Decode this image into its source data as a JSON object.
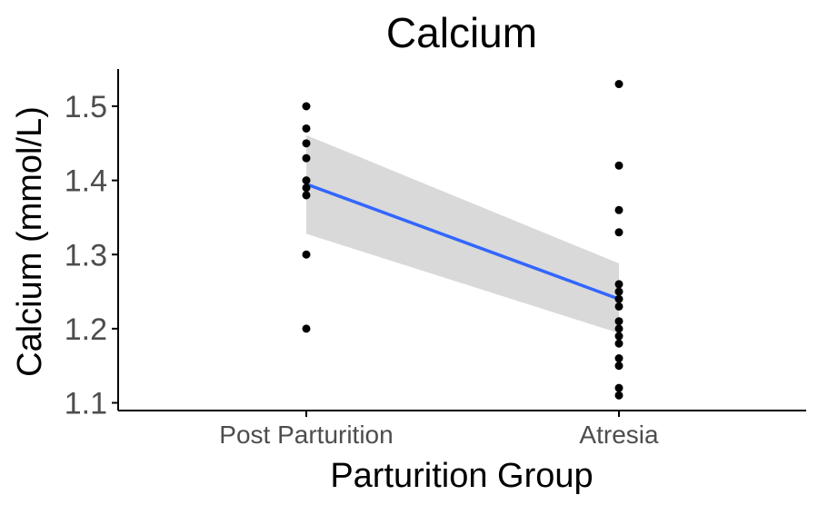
{
  "chart_data": {
    "type": "scatter",
    "title": "Calcium",
    "xlabel": "Parturition Group",
    "ylabel": "Calcium (mmol/L)",
    "categories": [
      "Post Parturition",
      "Atresia"
    ],
    "ylim": [
      1.09,
      1.55
    ],
    "yticks": [
      1.1,
      1.2,
      1.3,
      1.4,
      1.5
    ],
    "ytick_labels": [
      "1.1",
      "1.2",
      "1.3",
      "1.4",
      "1.5"
    ],
    "grid": false,
    "legend": "none",
    "points": [
      {
        "category": "Post Parturition",
        "y": 1.5
      },
      {
        "category": "Post Parturition",
        "y": 1.47
      },
      {
        "category": "Post Parturition",
        "y": 1.45
      },
      {
        "category": "Post Parturition",
        "y": 1.43
      },
      {
        "category": "Post Parturition",
        "y": 1.4
      },
      {
        "category": "Post Parturition",
        "y": 1.39
      },
      {
        "category": "Post Parturition",
        "y": 1.38
      },
      {
        "category": "Post Parturition",
        "y": 1.3
      },
      {
        "category": "Post Parturition",
        "y": 1.2
      },
      {
        "category": "Atresia",
        "y": 1.53
      },
      {
        "category": "Atresia",
        "y": 1.42
      },
      {
        "category": "Atresia",
        "y": 1.36
      },
      {
        "category": "Atresia",
        "y": 1.33
      },
      {
        "category": "Atresia",
        "y": 1.26
      },
      {
        "category": "Atresia",
        "y": 1.25
      },
      {
        "category": "Atresia",
        "y": 1.24
      },
      {
        "category": "Atresia",
        "y": 1.23
      },
      {
        "category": "Atresia",
        "y": 1.21
      },
      {
        "category": "Atresia",
        "y": 1.2
      },
      {
        "category": "Atresia",
        "y": 1.19
      },
      {
        "category": "Atresia",
        "y": 1.18
      },
      {
        "category": "Atresia",
        "y": 1.16
      },
      {
        "category": "Atresia",
        "y": 1.15
      },
      {
        "category": "Atresia",
        "y": 1.12
      },
      {
        "category": "Atresia",
        "y": 1.11
      }
    ],
    "trend": {
      "type": "linear",
      "start": {
        "category": "Post Parturition",
        "y": 1.395,
        "ci_low": 1.328,
        "ci_high": 1.461
      },
      "end": {
        "category": "Atresia",
        "y": 1.24,
        "ci_low": 1.194,
        "ci_high": 1.288
      }
    },
    "colors": {
      "points": "#000000",
      "trend_line": "#3366FF",
      "ci_band": "#D9D9D9",
      "axis": "#000000",
      "tick_label": "#4d4d4d"
    }
  }
}
